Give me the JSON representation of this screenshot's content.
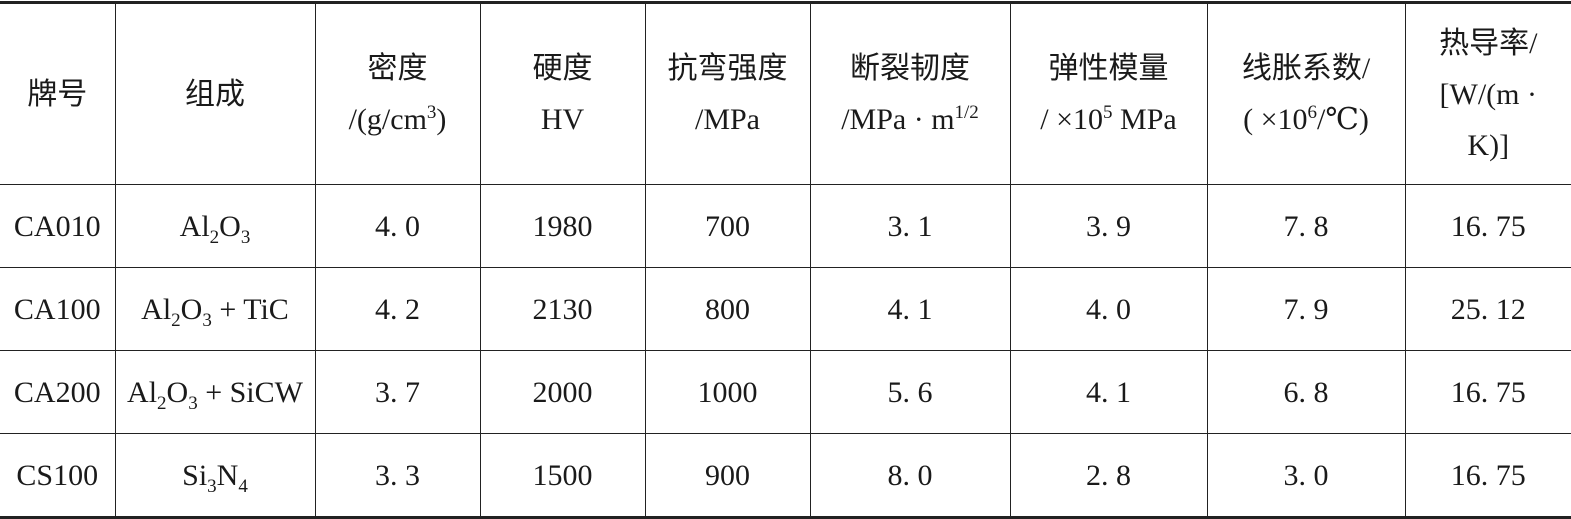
{
  "table": {
    "header": [
      [
        [
          "牌号"
        ]
      ],
      [
        [
          "组成"
        ]
      ],
      [
        [
          "密度"
        ],
        [
          "/(g/cm",
          {
            "sup": "3"
          },
          ")"
        ]
      ],
      [
        [
          "硬度"
        ],
        [
          "HV"
        ]
      ],
      [
        [
          "抗弯强度"
        ],
        [
          "/MPa"
        ]
      ],
      [
        [
          "断裂韧度"
        ],
        [
          "/MPa · m",
          {
            "sup": "1/2"
          }
        ]
      ],
      [
        [
          "弹性模量"
        ],
        [
          "/ ×10",
          {
            "sup": "5"
          },
          " MPa"
        ]
      ],
      [
        [
          "线胀系数/"
        ],
        [
          "( ×10",
          {
            "sup": "6"
          },
          "/℃)"
        ]
      ],
      [
        [
          "热导率/"
        ],
        [
          "[W/(m ·"
        ],
        [
          "K)]"
        ]
      ]
    ],
    "rows": [
      [
        "CA010",
        [
          "Al",
          {
            "sub": "2"
          },
          "O",
          {
            "sub": "3"
          }
        ],
        "4. 0",
        "1980",
        "700",
        "3. 1",
        "3. 9",
        "7. 8",
        "16. 75"
      ],
      [
        "CA100",
        [
          "Al",
          {
            "sub": "2"
          },
          "O",
          {
            "sub": "3"
          },
          " + TiC"
        ],
        "4. 2",
        "2130",
        "800",
        "4. 1",
        "4. 0",
        "7. 9",
        "25. 12"
      ],
      [
        "CA200",
        [
          "Al",
          {
            "sub": "2"
          },
          "O",
          {
            "sub": "3"
          },
          " + SiCW"
        ],
        "3. 7",
        "2000",
        "1000",
        "5. 6",
        "4. 1",
        "6. 8",
        "16. 75"
      ],
      [
        "CS100",
        [
          "Si",
          {
            "sub": "3"
          },
          "N",
          {
            "sub": "4"
          }
        ],
        "3. 3",
        "1500",
        "900",
        "8. 0",
        "2. 8",
        "3. 0",
        "16. 75"
      ]
    ]
  }
}
